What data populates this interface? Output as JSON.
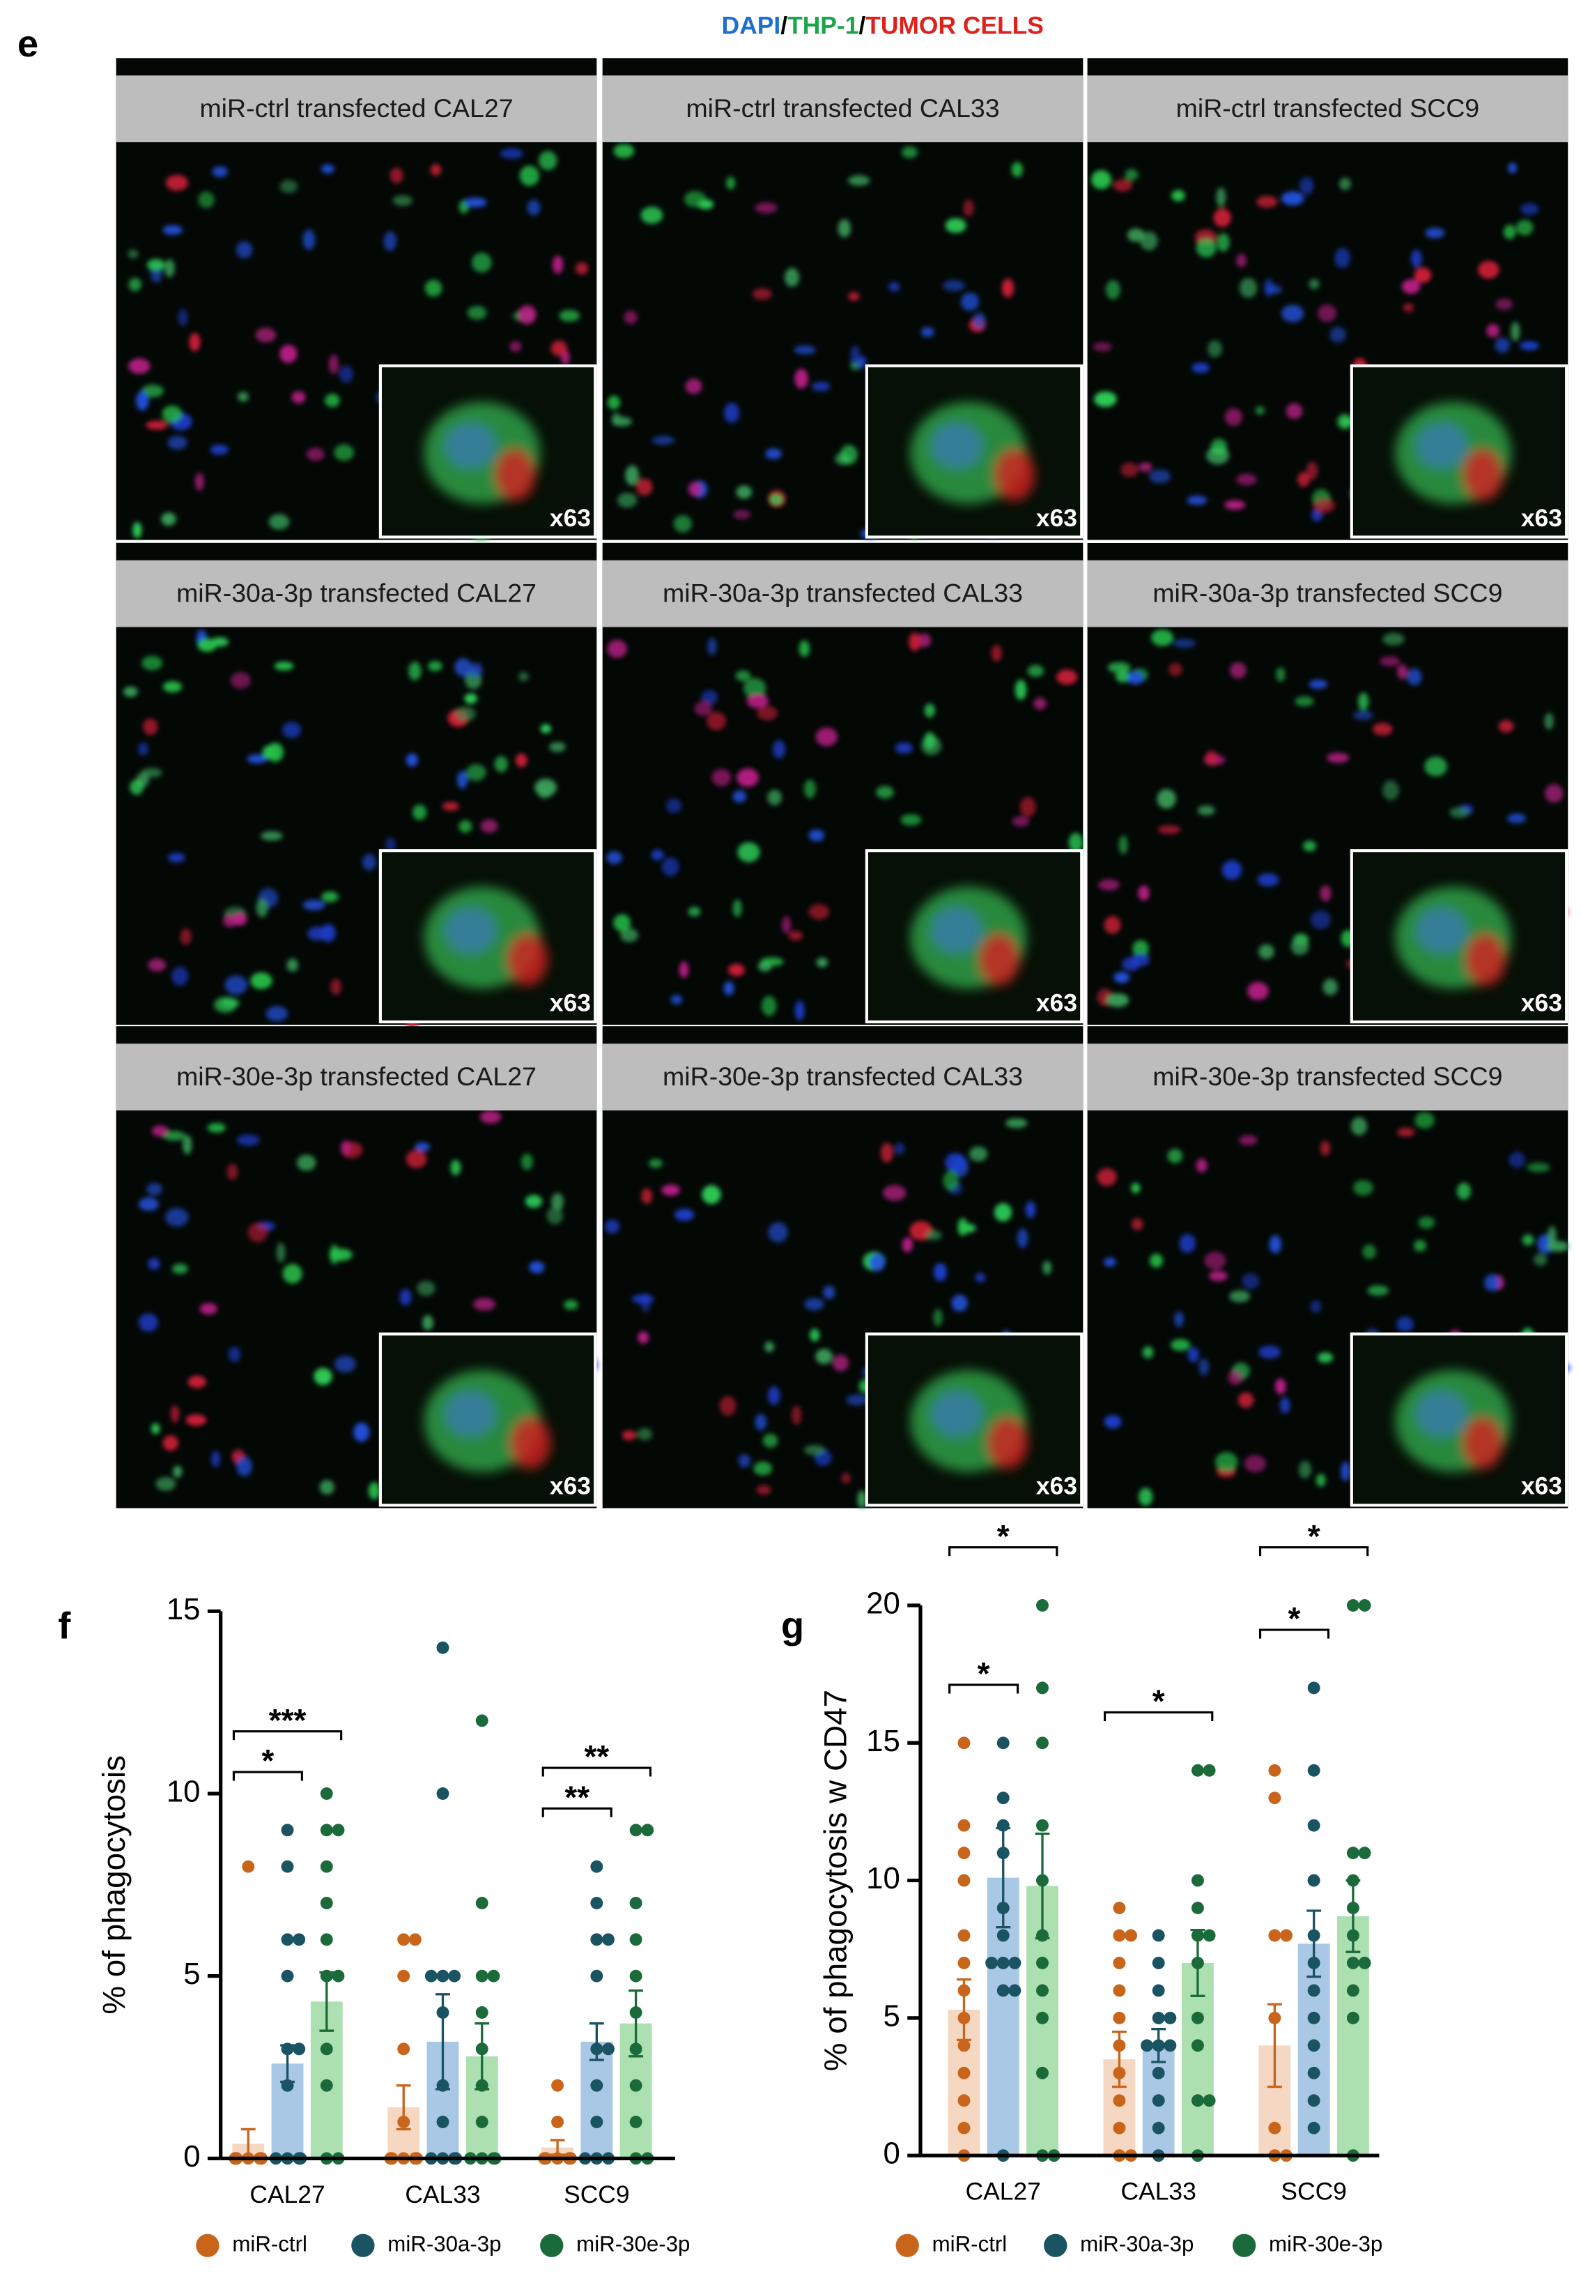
{
  "panel_e": {
    "label": "e",
    "legend": [
      {
        "text": "DAPI",
        "color": "#1f6fd1"
      },
      {
        "text": "/",
        "color": "#000000"
      },
      {
        "text": "THP-1",
        "color": "#1aa54a"
      },
      {
        "text": "/",
        "color": "#000000"
      },
      {
        "text": "TUMOR CELLS",
        "color": "#e0201b"
      }
    ],
    "tiles": [
      {
        "title": "miR-ctrl transfected CAL27",
        "inset": "x63"
      },
      {
        "title": "miR-ctrl transfected CAL33",
        "inset": "x63"
      },
      {
        "title": "miR-ctrl transfected SCC9",
        "inset": "x63"
      },
      {
        "title": "miR-30a-3p transfected CAL27",
        "inset": "x63"
      },
      {
        "title": "miR-30a-3p transfected CAL33",
        "inset": "x63"
      },
      {
        "title": "miR-30a-3p transfected SCC9",
        "inset": "x63"
      },
      {
        "title": "miR-30e-3p transfected CAL27",
        "inset": "x63"
      },
      {
        "title": "miR-30e-3p transfected CAL33",
        "inset": "x63"
      },
      {
        "title": "miR-30e-3p transfected SCC9",
        "inset": "x63"
      }
    ]
  },
  "chart_data": [
    {
      "type": "bar",
      "panel": "f",
      "ylabel": "% of phagocytosis",
      "categories": [
        "CAL27",
        "CAL33",
        "SCC9"
      ],
      "ylim": [
        0,
        15
      ],
      "yticks": [
        0,
        5,
        10,
        15
      ],
      "series": [
        {
          "name": "miR-ctrl",
          "color": "#c8651b",
          "bar_color": "#f5d7c2",
          "values": [
            0.4,
            1.4,
            0.3
          ],
          "errors": [
            0.4,
            0.6,
            0.2
          ],
          "points": [
            [
              8,
              0,
              0,
              0,
              0,
              0,
              0,
              0,
              0,
              0,
              0,
              0
            ],
            [
              6,
              6,
              5,
              3,
              1,
              0,
              0,
              0,
              0,
              0,
              0,
              0
            ],
            [
              2,
              1,
              0,
              0,
              0,
              0,
              0,
              0,
              0,
              0
            ]
          ]
        },
        {
          "name": "miR-30a-3p",
          "color": "#1a5362",
          "bar_color": "#a9c8e6",
          "values": [
            2.6,
            3.2,
            3.2
          ],
          "errors": [
            0.5,
            1.3,
            0.5
          ],
          "points": [
            [
              9,
              8,
              6,
              6,
              5,
              3,
              3,
              2,
              0,
              0,
              0,
              0
            ],
            [
              14,
              10,
              5,
              5,
              5,
              4,
              2,
              1,
              0,
              0,
              0,
              0
            ],
            [
              8,
              7,
              6,
              6,
              5,
              3,
              3,
              2,
              1,
              0,
              0,
              0
            ]
          ]
        },
        {
          "name": "miR-30e-3p",
          "color": "#1b6a3a",
          "bar_color": "#ace0b0",
          "values": [
            4.3,
            2.8,
            3.7
          ],
          "errors": [
            0.8,
            0.9,
            0.9
          ],
          "points": [
            [
              10,
              9,
              9,
              8,
              7,
              6,
              5,
              5,
              3,
              2,
              0,
              0
            ],
            [
              12,
              7,
              5,
              5,
              4,
              3,
              2,
              1,
              0,
              0,
              0,
              0
            ],
            [
              9,
              9,
              7,
              6,
              5,
              4,
              3,
              2,
              1,
              0,
              0
            ]
          ]
        }
      ],
      "annotations": [
        {
          "text": "*",
          "category": "CAL27",
          "between": [
            "miR-ctrl",
            "miR-30a-3p"
          ]
        },
        {
          "text": "***",
          "category": "CAL27",
          "between": [
            "miR-ctrl",
            "miR-30e-3p"
          ]
        },
        {
          "text": "**",
          "category": "SCC9",
          "between": [
            "miR-ctrl",
            "miR-30a-3p"
          ]
        },
        {
          "text": "**",
          "category": "SCC9",
          "between": [
            "miR-ctrl",
            "miR-30e-3p"
          ]
        }
      ]
    },
    {
      "type": "bar",
      "panel": "g",
      "ylabel": "% of phagocytosis w CD47",
      "categories": [
        "CAL27",
        "CAL33",
        "SCC9"
      ],
      "ylim": [
        0,
        20
      ],
      "yticks": [
        0,
        5,
        10,
        15,
        20
      ],
      "series": [
        {
          "name": "miR-ctrl",
          "color": "#c8651b",
          "bar_color": "#f5d7c2",
          "values": [
            5.3,
            3.5,
            4.0
          ],
          "errors": [
            1.1,
            1.0,
            1.5
          ],
          "points": [
            [
              15,
              12,
              11,
              10,
              8,
              7,
              6,
              5,
              4,
              3,
              2,
              1,
              0
            ],
            [
              9,
              8,
              8,
              7,
              6,
              5,
              4,
              3,
              2,
              1,
              0,
              0
            ],
            [
              14,
              13,
              8,
              8,
              5,
              1,
              0,
              0
            ]
          ]
        },
        {
          "name": "miR-30a-3p",
          "color": "#1a5362",
          "bar_color": "#a9c8e6",
          "values": [
            10.1,
            4.0,
            7.7
          ],
          "errors": [
            1.8,
            0.6,
            1.2
          ],
          "points": [
            [
              15,
              13,
              12,
              11,
              9,
              8,
              7,
              7,
              7,
              6,
              6,
              0
            ],
            [
              8,
              7,
              6,
              5,
              5,
              4,
              4,
              4,
              3,
              2,
              1,
              0
            ],
            [
              17,
              14,
              12,
              10,
              8,
              7,
              6,
              5,
              4,
              3,
              2,
              1
            ]
          ]
        },
        {
          "name": "miR-30e-3p",
          "color": "#1b6a3a",
          "bar_color": "#ace0b0",
          "values": [
            9.8,
            7.0,
            8.7
          ],
          "errors": [
            1.9,
            1.2,
            1.3
          ],
          "points": [
            [
              20,
              17,
              15,
              12,
              10,
              8,
              7,
              6,
              5,
              3,
              0,
              0
            ],
            [
              14,
              14,
              10,
              9,
              8,
              8,
              7,
              5,
              4,
              2,
              2,
              0
            ],
            [
              20,
              20,
              11,
              11,
              10,
              9,
              8,
              7,
              7,
              6,
              5,
              0
            ]
          ]
        }
      ],
      "annotations": [
        {
          "text": "*",
          "category": "CAL27",
          "between": [
            "miR-ctrl",
            "miR-30a-3p"
          ]
        },
        {
          "text": "*",
          "category": "CAL27",
          "between": [
            "miR-ctrl",
            "miR-30e-3p"
          ]
        },
        {
          "text": "*",
          "category": "CAL33",
          "between": [
            "miR-ctrl",
            "miR-30e-3p"
          ]
        },
        {
          "text": "*",
          "category": "SCC9",
          "between": [
            "miR-ctrl",
            "miR-30a-3p"
          ]
        },
        {
          "text": "*",
          "category": "SCC9",
          "between": [
            "miR-ctrl",
            "miR-30e-3p"
          ]
        }
      ]
    }
  ]
}
